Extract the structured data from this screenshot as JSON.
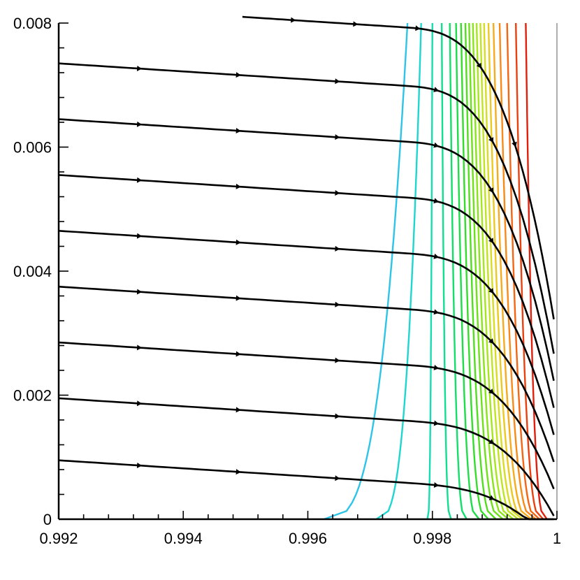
{
  "chart_data": {
    "type": "line",
    "title": "",
    "xlabel": "",
    "ylabel": "",
    "xlim": [
      0.992,
      1.0
    ],
    "ylim": [
      0,
      0.008
    ],
    "grid": false,
    "legend": "none",
    "x_major_ticks": [
      0.992,
      0.994,
      0.996,
      0.998,
      1.0
    ],
    "x_tick_labels": [
      "0.992",
      "0.994",
      "0.996",
      "0.998",
      "1"
    ],
    "y_major_ticks": [
      0,
      0.002,
      0.004,
      0.006,
      0.008
    ],
    "y_tick_labels": [
      "0",
      "0.002",
      "0.004",
      "0.006",
      "0.008"
    ],
    "x_minor_step": 0.0004,
    "y_minor_step": 0.0004,
    "streamline_color": "#000000",
    "streamlines": [
      {
        "start_y": 0.0081,
        "start_x": 0.99495
      },
      {
        "start_y": 0.00735,
        "start_x": 0.992
      },
      {
        "start_y": 0.00645,
        "start_x": 0.992
      },
      {
        "start_y": 0.00555,
        "start_x": 0.992
      },
      {
        "start_y": 0.00465,
        "start_x": 0.992
      },
      {
        "start_y": 0.00375,
        "start_x": 0.992
      },
      {
        "start_y": 0.00285,
        "start_x": 0.992
      },
      {
        "start_y": 0.00195,
        "start_x": 0.992
      },
      {
        "start_y": 0.00095,
        "start_x": 0.992
      }
    ],
    "contours": [
      {
        "x_top": 0.9976,
        "x_bottom": 0.99626,
        "color": "#2ec4e8"
      },
      {
        "x_top": 0.99782,
        "x_bottom": 0.9971,
        "color": "#1fd6cf"
      },
      {
        "x_top": 0.998,
        "x_bottom": 0.99792,
        "color": "#17dcb3"
      },
      {
        "x_top": 0.99815,
        "x_bottom": 0.9983,
        "color": "#12de8f"
      },
      {
        "x_top": 0.99828,
        "x_bottom": 0.99855,
        "color": "#14dd6b"
      },
      {
        "x_top": 0.99838,
        "x_bottom": 0.99875,
        "color": "#1fdc4a"
      },
      {
        "x_top": 0.99846,
        "x_bottom": 0.9989,
        "color": "#36dc2c"
      },
      {
        "x_top": 0.99853,
        "x_bottom": 0.99902,
        "color": "#52de1e"
      },
      {
        "x_top": 0.99859,
        "x_bottom": 0.99913,
        "color": "#6ee11a"
      },
      {
        "x_top": 0.99865,
        "x_bottom": 0.99922,
        "color": "#8ae41a"
      },
      {
        "x_top": 0.99871,
        "x_bottom": 0.9993,
        "color": "#a6e61c"
      },
      {
        "x_top": 0.99877,
        "x_bottom": 0.99938,
        "color": "#c0e41f"
      },
      {
        "x_top": 0.99883,
        "x_bottom": 0.99945,
        "color": "#d8dc22"
      },
      {
        "x_top": 0.9989,
        "x_bottom": 0.99952,
        "color": "#ecc91f"
      },
      {
        "x_top": 0.99898,
        "x_bottom": 0.99959,
        "color": "#f5ab1c"
      },
      {
        "x_top": 0.99908,
        "x_bottom": 0.99966,
        "color": "#f78a18"
      },
      {
        "x_top": 0.9992,
        "x_bottom": 0.99972,
        "color": "#f26614"
      },
      {
        "x_top": 0.99934,
        "x_bottom": 0.99978,
        "color": "#e8410f"
      },
      {
        "x_top": 0.9995,
        "x_bottom": 0.99984,
        "color": "#e0200c"
      }
    ]
  }
}
